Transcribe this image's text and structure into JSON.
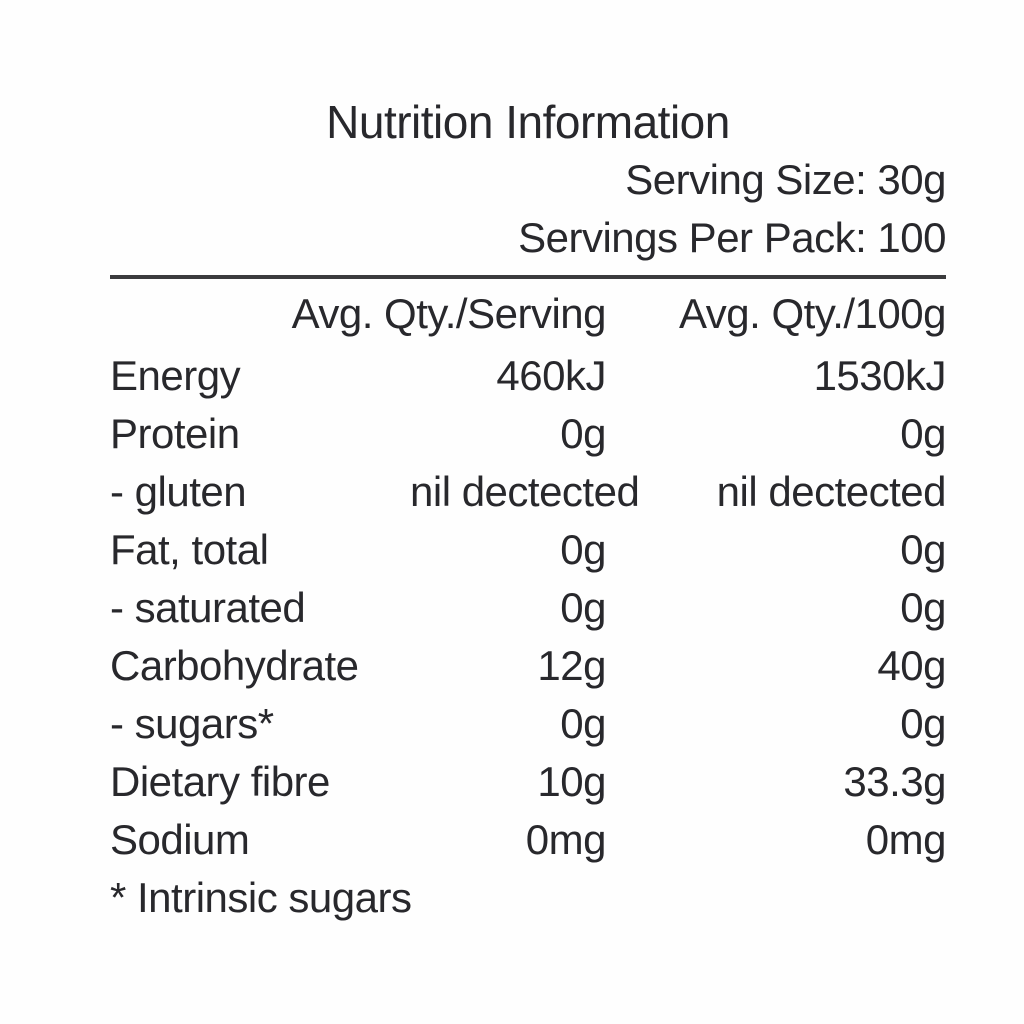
{
  "page": {
    "background_color": "#fefefe",
    "text_color": "#28282c",
    "rule_color": "#3b3b3d"
  },
  "header": {
    "title": "Nutrition Information",
    "serving_size_line": "Serving Size: 30g",
    "servings_per_pack_line": "Servings Per Pack: 100"
  },
  "table": {
    "column_headers": {
      "per_serving": "Avg. Qty./Serving",
      "per_100g": "Avg. Qty./100g"
    },
    "rows": [
      {
        "label": "Energy",
        "per_serving": "460kJ",
        "per_100g": "1530kJ"
      },
      {
        "label": "Protein",
        "per_serving": "0g",
        "per_100g": "0g"
      },
      {
        "label": "- gluten",
        "per_serving": "nil dectected",
        "per_100g": "nil dectected"
      },
      {
        "label": "Fat, total",
        "per_serving": "0g",
        "per_100g": "0g"
      },
      {
        "label": "- saturated",
        "per_serving": "0g",
        "per_100g": "0g"
      },
      {
        "label": "Carbohydrate",
        "per_serving": "12g",
        "per_100g": "40g"
      },
      {
        "label": "- sugars*",
        "per_serving": "0g",
        "per_100g": "0g"
      },
      {
        "label": "Dietary fibre",
        "per_serving": "10g",
        "per_100g": "33.3g"
      },
      {
        "label": "Sodium",
        "per_serving": "0mg",
        "per_100g": "0mg"
      }
    ],
    "footnote": "* Intrinsic sugars"
  }
}
